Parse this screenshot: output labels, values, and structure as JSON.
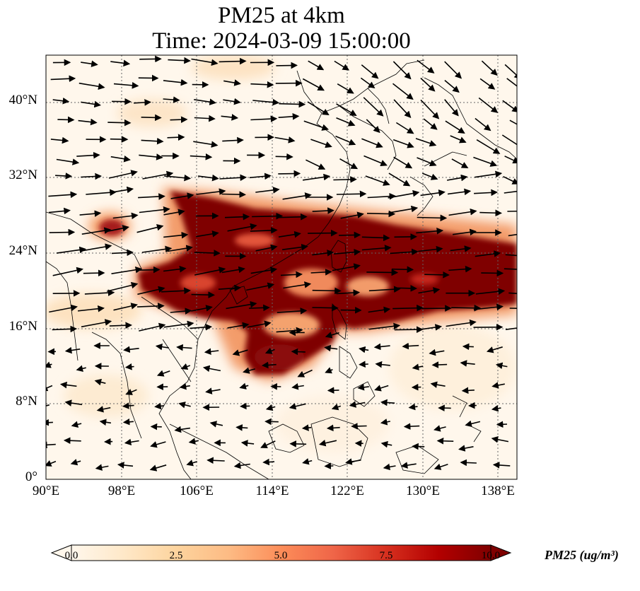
{
  "figure": {
    "title_line1": "PM25 at 4km",
    "title_line2": "Time: 2024-03-09 15:00:00",
    "x_tick_labels": [
      "90°E",
      "98°E",
      "106°E",
      "114°E",
      "122°E",
      "130°E",
      "138°E"
    ],
    "y_tick_labels": [
      "0°",
      "8°N",
      "16°N",
      "24°N",
      "32°N",
      "40°N"
    ],
    "extent": {
      "lon_min": 90,
      "lon_max": 140,
      "lat_min": 0,
      "lat_max": 45
    },
    "gridlines": true,
    "variable": "PM25",
    "level": "4km"
  },
  "colorbar": {
    "label": "PM25 (ug/m³)",
    "ticks": [
      "0.0",
      "2.5",
      "5.0",
      "7.5",
      "10.0"
    ],
    "min": 0,
    "max": 10,
    "colormap": "OrRd",
    "extend": "both",
    "colors": [
      "#fff7ec",
      "#fee8c8",
      "#fdd49e",
      "#fdbb84",
      "#fc8d59",
      "#ef6548",
      "#d7301f",
      "#b30000",
      "#7f0000"
    ]
  },
  "layers": {
    "plume_color": "#7f0000",
    "coastline_color": "#000000",
    "wind_vector_color": "#000000"
  }
}
